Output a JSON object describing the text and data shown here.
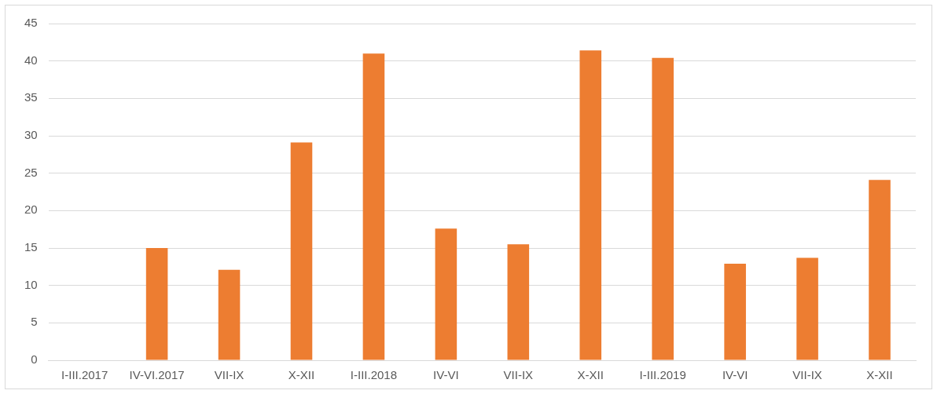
{
  "chart_data": {
    "type": "bar",
    "categories": [
      "I-III.2017",
      "IV-VI.2017",
      "VII-IX",
      "X-XII",
      "I-III.2018",
      "IV-VI",
      "VII-IX",
      "X-XII",
      "I-III.2019",
      "IV-VI",
      "VII-IX",
      "X-XII"
    ],
    "values": [
      0,
      15,
      12.1,
      29.1,
      41,
      17.6,
      15.5,
      41.4,
      40.4,
      12.9,
      13.7,
      24.1
    ],
    "color": "#ed7d31",
    "ylim": [
      0,
      45
    ],
    "yticks": [
      0,
      5,
      10,
      15,
      20,
      25,
      30,
      35,
      40,
      45
    ],
    "grid": "y",
    "legend": false
  }
}
